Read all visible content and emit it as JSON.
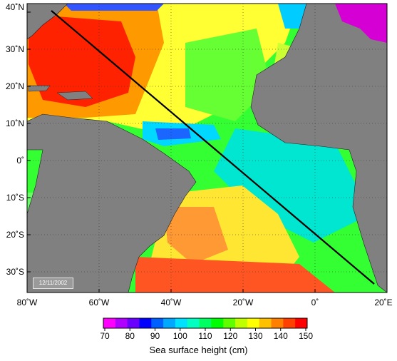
{
  "map": {
    "lat_labels": [
      "40˚N",
      "30˚N",
      "20˚N",
      "10˚N",
      "0˚",
      "10˚S",
      "20˚S",
      "30˚S"
    ],
    "lon_labels": [
      "80˚W",
      "60˚W",
      "40˚W",
      "20˚W",
      "0˚",
      "20˚E"
    ],
    "date_stamp": "12/11/2002",
    "track_line": true,
    "grid": "dotted"
  },
  "colorbar": {
    "ticks": [
      "70",
      "80",
      "90",
      "100",
      "110",
      "120",
      "130",
      "140",
      "150"
    ],
    "title": "Sea surface height (cm)",
    "colors": [
      "#ff00ff",
      "#b000ff",
      "#6a00ff",
      "#0000ff",
      "#0060ff",
      "#00a8ff",
      "#00e0ff",
      "#00ffc0",
      "#00ff60",
      "#00ff00",
      "#60ff00",
      "#c0ff00",
      "#ffff00",
      "#ffc000",
      "#ff8000",
      "#ff4000",
      "#ff0000"
    ]
  }
}
